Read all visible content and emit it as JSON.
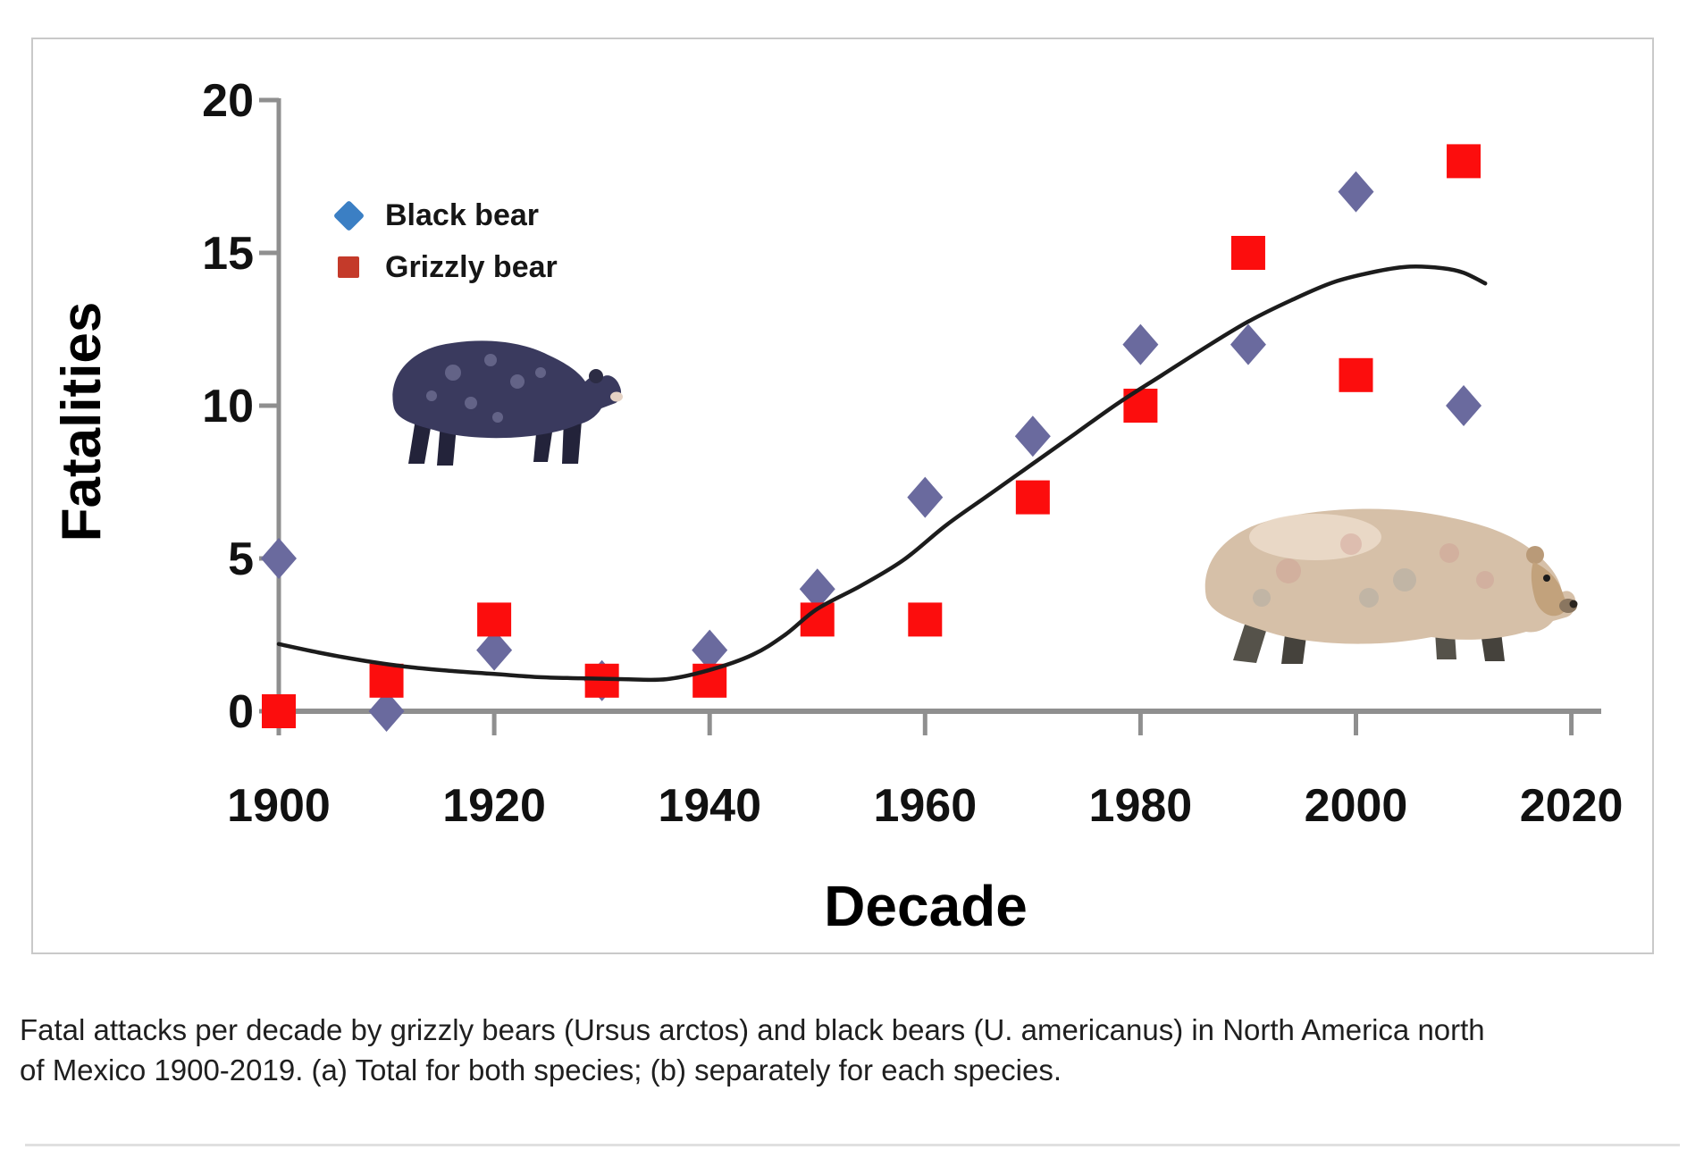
{
  "figure": {
    "ylabel": "Fatalities",
    "xlabel": "Decade"
  },
  "chart_data": {
    "type": "scatter",
    "title": "",
    "xlabel": "Decade",
    "ylabel": "Fatalities",
    "x_ticks": [
      1900,
      1920,
      1940,
      1960,
      1980,
      2000,
      2020
    ],
    "y_ticks": [
      0,
      5,
      10,
      15,
      20
    ],
    "xlim": [
      1900,
      2023
    ],
    "ylim": [
      0,
      20
    ],
    "grid": "off",
    "legend_position": "upper-left-inside",
    "categories": [
      1900,
      1910,
      1920,
      1930,
      1940,
      1950,
      1960,
      1970,
      1980,
      1990,
      2000,
      2010
    ],
    "series": [
      {
        "name": "Black bear",
        "marker": "diamond",
        "legend_color": "#3b7fc4",
        "point_color": "#6a6a9e",
        "values": [
          5,
          0,
          2,
          1,
          2,
          4,
          7,
          9,
          12,
          12,
          17,
          10
        ],
        "note": "1930 diamond hidden behind grizzly square"
      },
      {
        "name": "Grizzly bear",
        "marker": "square",
        "legend_color": "#c43a2a",
        "point_color": "#fc0d0d",
        "values": [
          0,
          1,
          3,
          1,
          1,
          3,
          3,
          7,
          10,
          15,
          11,
          18
        ]
      }
    ],
    "trend_curve": {
      "color": "#1c1c1c",
      "points": [
        [
          1900,
          2.2
        ],
        [
          1904,
          1.9
        ],
        [
          1908,
          1.65
        ],
        [
          1912,
          1.45
        ],
        [
          1916,
          1.32
        ],
        [
          1920,
          1.22
        ],
        [
          1924,
          1.12
        ],
        [
          1928,
          1.08
        ],
        [
          1932,
          1.05
        ],
        [
          1936,
          1.05
        ],
        [
          1940,
          1.35
        ],
        [
          1944,
          1.85
        ],
        [
          1947,
          2.5
        ],
        [
          1950,
          3.35
        ],
        [
          1954,
          4.1
        ],
        [
          1958,
          4.95
        ],
        [
          1962,
          6.1
        ],
        [
          1966,
          7.1
        ],
        [
          1970,
          8.1
        ],
        [
          1974,
          9.1
        ],
        [
          1978,
          10.1
        ],
        [
          1982,
          11.0
        ],
        [
          1986,
          11.9
        ],
        [
          1990,
          12.75
        ],
        [
          1994,
          13.45
        ],
        [
          1998,
          14.05
        ],
        [
          2002,
          14.4
        ],
        [
          2005,
          14.55
        ],
        [
          2008,
          14.5
        ],
        [
          2010,
          14.35
        ],
        [
          2012,
          14.0
        ]
      ]
    }
  },
  "caption": {
    "line1": "Fatal attacks per decade by grizzly bears (Ursus arctos) and black bears (U. americanus) in North America north",
    "line2": "of Mexico 1900-2019. (a) Total for both species; (b) separately for each species."
  }
}
